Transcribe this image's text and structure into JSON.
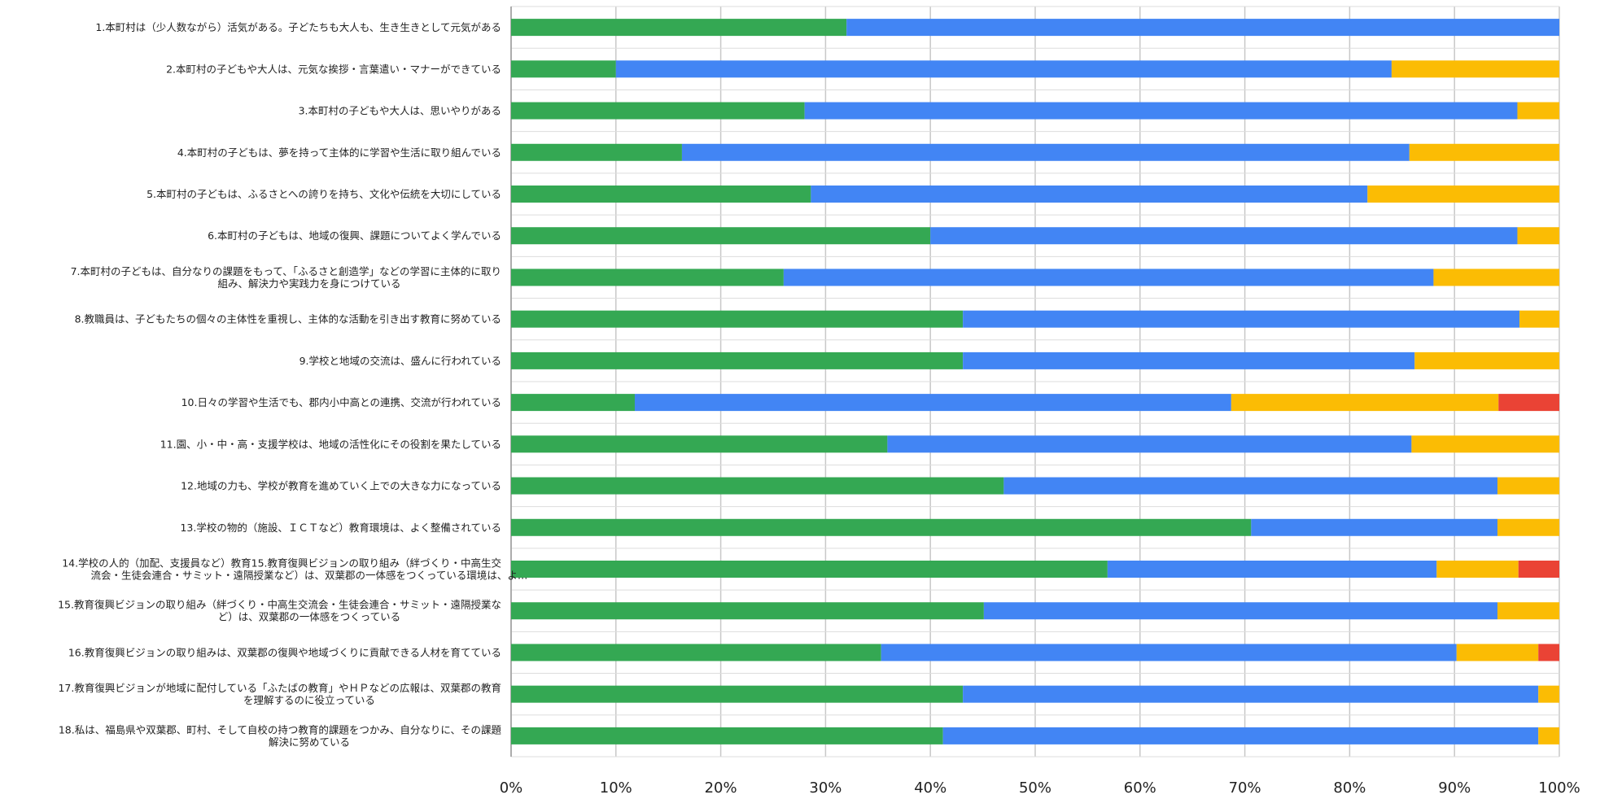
{
  "chart_data": {
    "type": "bar",
    "orientation": "horizontal",
    "stacked": "percent",
    "categories": [
      [
        "1.本町村は（少人数ながら）活気がある。子どたちも大人も、生き生きとして元気がある"
      ],
      [
        "2.本町村の子どもや大人は、元気な挨拶・言葉遣い・マナーができている"
      ],
      [
        "3.本町村の子どもや大人は、思いやりがある"
      ],
      [
        "4.本町村の子どもは、夢を持って主体的に学習や生活に取り組んでいる"
      ],
      [
        "5.本町村の子どもは、ふるさとへの誇りを持ち、文化や伝統を大切にしている"
      ],
      [
        "6.本町村の子どもは、地域の復興、課題についてよく学んでいる"
      ],
      [
        "7.本町村の子どもは、自分なりの課題をもって、「ふるさと創造学」などの学習に主体的に取り",
        "組み、解決力や実践力を身につけている"
      ],
      [
        "8.教職員は、子どもたちの個々の主体性を重視し、主体的な活動を引き出す教育に努めている"
      ],
      [
        "9.学校と地域の交流は、盛んに行われている"
      ],
      [
        "10.日々の学習や生活でも、郡内小中高との連携、交流が行われている"
      ],
      [
        "11.園、小・中・高・支援学校は、地域の活性化にその役割を果たしている"
      ],
      [
        "12.地域の力も、学校が教育を進めていく上での大きな力になっている"
      ],
      [
        "13.学校の物的（施設、ＩＣＴなど）教育環境は、よく整備されている"
      ],
      [
        "14.学校の人的（加配、支援員など）教育15.教育復興ビジョンの取り組み（絆づくり・中高生交",
        "流会・生徒会連合・サミット・遠隔授業など）は、双葉郡の一体感をつくっている環境は、よ…"
      ],
      [
        "15.教育復興ビジョンの取り組み（絆づくり・中高生交流会・生徒会連合・サミット・遠隔授業な",
        "ど）は、双葉郡の一体感をつくっている"
      ],
      [
        "16.教育復興ビジョンの取り組みは、双葉郡の復興や地域づくりに貢献できる人材を育てている"
      ],
      [
        "17.教育復興ビジョンが地域に配付している「ふたばの教育」やＨＰなどの広報は、双葉郡の教育",
        "を理解するのに役立っている"
      ],
      [
        "18.私は、福島県や双葉郡、町村、そして自校の持つ教育的課題をつかみ、自分なりに、その課題",
        "解決に努めている"
      ]
    ],
    "series": [
      {
        "color": "#34a853",
        "values": [
          32,
          10,
          28,
          16.3,
          28.6,
          40,
          26,
          43.1,
          43.1,
          11.8,
          35.9,
          47,
          70.6,
          56.9,
          45.1,
          35.3,
          43.1,
          41.2
        ]
      },
      {
        "color": "#4285f4",
        "values": [
          68,
          74,
          68,
          69.4,
          53.1,
          56,
          62,
          53.1,
          43.1,
          56.9,
          50,
          47.1,
          23.5,
          31.4,
          49,
          54.9,
          54.9,
          56.8
        ]
      },
      {
        "color": "#fbbc04",
        "values": [
          0,
          16,
          4,
          14.3,
          18.3,
          4,
          12,
          3.8,
          13.8,
          25.5,
          14.1,
          5.9,
          5.9,
          7.8,
          5.9,
          7.8,
          2,
          2
        ]
      },
      {
        "color": "#ea4335",
        "values": [
          0,
          0,
          0,
          0,
          0,
          0,
          0,
          0,
          0,
          5.8,
          0,
          0,
          0,
          3.9,
          0,
          2,
          0,
          0
        ]
      }
    ],
    "xlim": [
      0,
      100
    ],
    "xticks": [
      "0%",
      "10%",
      "20%",
      "30%",
      "40%",
      "50%",
      "60%",
      "70%",
      "80%",
      "90%",
      "100%"
    ],
    "grid": true,
    "legend": "none"
  }
}
